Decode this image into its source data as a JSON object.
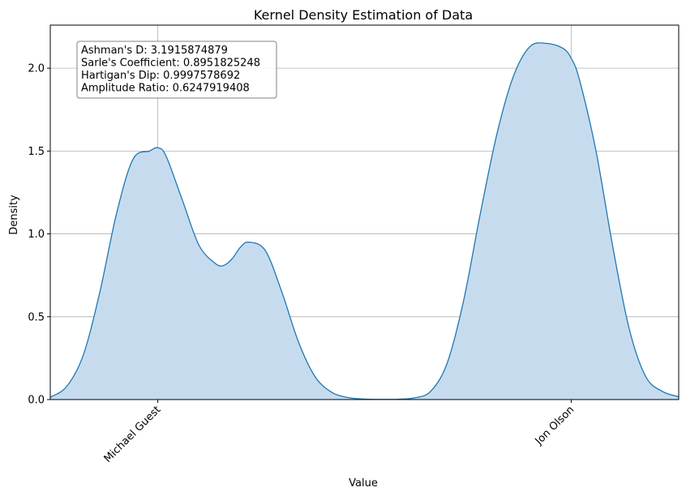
{
  "chart_data": {
    "type": "area",
    "title": "Kernel Density Estimation of Data",
    "xlabel": "Value",
    "ylabel": "Density",
    "xlim": [
      -0.26,
      1.26
    ],
    "ylim": [
      0,
      2.26
    ],
    "grid": true,
    "x_ticks": [
      {
        "value": 0,
        "label": "Michael Guest"
      },
      {
        "value": 1,
        "label": "Jon Olson"
      }
    ],
    "y_ticks": [
      {
        "value": 0.0,
        "label": "0.0"
      },
      {
        "value": 0.5,
        "label": "0.5"
      },
      {
        "value": 1.0,
        "label": "1.0"
      },
      {
        "value": 1.5,
        "label": "1.5"
      },
      {
        "value": 2.0,
        "label": "2.0"
      }
    ],
    "series": [
      {
        "color": "#1f77b4",
        "fill": "#c6dcee",
        "x": [
          -0.26,
          -0.22,
          -0.18,
          -0.14,
          -0.1,
          -0.06,
          -0.02,
          0.0,
          0.02,
          0.06,
          0.1,
          0.14,
          0.16,
          0.18,
          0.2,
          0.22,
          0.26,
          0.3,
          0.34,
          0.38,
          0.42,
          0.46,
          0.5,
          0.54,
          0.58,
          0.62,
          0.66,
          0.7,
          0.74,
          0.78,
          0.82,
          0.86,
          0.9,
          0.94,
          0.98,
          1.0,
          1.02,
          1.06,
          1.1,
          1.14,
          1.18,
          1.22,
          1.26
        ],
        "y": [
          0.014,
          0.08,
          0.27,
          0.65,
          1.12,
          1.45,
          1.5,
          1.52,
          1.47,
          1.2,
          0.93,
          0.82,
          0.81,
          0.85,
          0.92,
          0.95,
          0.9,
          0.65,
          0.35,
          0.14,
          0.045,
          0.012,
          0.003,
          0.001,
          0.002,
          0.01,
          0.05,
          0.22,
          0.6,
          1.12,
          1.6,
          1.95,
          2.13,
          2.15,
          2.12,
          2.06,
          1.93,
          1.5,
          0.93,
          0.43,
          0.14,
          0.05,
          0.017
        ]
      }
    ],
    "annotation": {
      "lines": [
        "Ashman's D: 3.1915874879",
        "Sarle's Coefficient: 0.8951825248",
        "Hartigan's Dip: 0.9997578692",
        "Amplitude Ratio: 0.6247919408"
      ],
      "placement": "top-left"
    }
  }
}
